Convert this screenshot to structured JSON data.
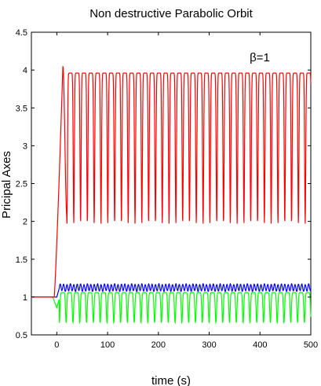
{
  "chart_data": {
    "type": "line",
    "title": "Non destructive Parabolic Orbit",
    "xlabel": "time (s)",
    "ylabel": "Pricipal Axes",
    "xlim": [
      -50,
      500
    ],
    "ylim": [
      0.5,
      4.5
    ],
    "xticks": [
      0,
      100,
      200,
      300,
      400,
      500
    ],
    "yticks": [
      0.5,
      1,
      1.5,
      2,
      2.5,
      3,
      3.5,
      4,
      4.5
    ],
    "xtick_labels": [
      "0",
      "100",
      "200",
      "300",
      "400",
      "500"
    ],
    "ytick_labels": [
      "0.5",
      "1",
      "1.5",
      "2",
      "2.5",
      "3",
      "3.5",
      "4",
      "4.5"
    ],
    "grid": false,
    "annotation": {
      "text": "β=1",
      "x": 410,
      "y": 4.1
    },
    "series": [
      {
        "color": "#ff0000",
        "description": "Rises from 1 near t=0 to a peak of 4.05 at t=12, then oscillates between about 1.97 and 3.96 with period about 13.4 s",
        "flat_value": 1.0,
        "rise_start": -5,
        "peak": {
          "x": 12,
          "y": 4.05
        },
        "first_min": {
          "x": 20,
          "y": 2.05
        },
        "oscillation": {
          "min": 1.97,
          "max": 3.96,
          "period": 13.4,
          "start": 20
        }
      },
      {
        "color": "#0000ff",
        "description": "Stays near 1, rises to about 1.1 after t=0 and oscillates between about 1.08 and 1.17",
        "flat_value": 1.0,
        "oscillation": {
          "min": 1.08,
          "max": 1.17,
          "period": 6.7,
          "start": 5
        }
      },
      {
        "color": "#00ff00",
        "description": "Stays near 1, dips to about 0.86 at t=0, then oscillates between about 0.66 and 1.06",
        "flat_value": 1.0,
        "dip": {
          "x": 0,
          "y": 0.86
        },
        "oscillation": {
          "min": 0.66,
          "max": 1.06,
          "period": 13.4,
          "start": 5
        }
      }
    ]
  }
}
